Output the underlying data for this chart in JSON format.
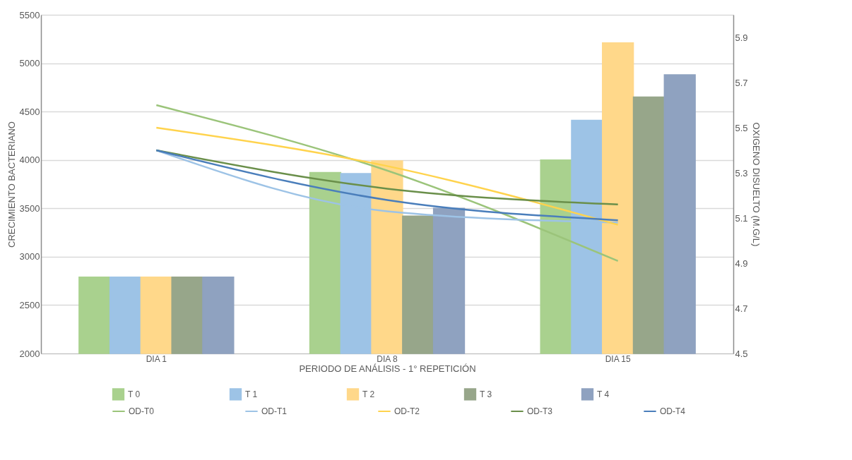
{
  "chart_data": {
    "type": "bar",
    "xlabel": "PERIODO DE ANÁLISIS - 1° REPETICIÓN",
    "ylabel": "CRECIMIENTO BACTERIANO",
    "y2label": "OXIGENO DISUELTO (M.G/L)",
    "categories": [
      "DIA 1",
      "DIA 8",
      "DIA 15"
    ],
    "series": [
      {
        "name": "T 0",
        "color": "#a9d18e",
        "values": [
          2790,
          3870,
          4000
        ]
      },
      {
        "name": "T 1",
        "color": "#9dc3e6",
        "values": [
          2790,
          3860,
          4410
        ]
      },
      {
        "name": "T 2",
        "color": "#ffd88a",
        "values": [
          2790,
          3990,
          5210
        ]
      },
      {
        "name": "T 3",
        "color": "#97a68a",
        "values": [
          2790,
          3420,
          4650
        ]
      },
      {
        "name": "T 4",
        "color": "#8fa2c0",
        "values": [
          2790,
          3500,
          4880
        ]
      },
      {
        "name": "OD-T0",
        "type": "line",
        "axis": "y2",
        "color": "#9bc47a",
        "values": [
          5.6,
          5.31,
          4.91
        ]
      },
      {
        "name": "OD-T1",
        "type": "line",
        "axis": "y2",
        "color": "#9dc3e6",
        "values": [
          5.4,
          5.13,
          5.08
        ]
      },
      {
        "name": "OD-T2",
        "type": "line",
        "axis": "y2",
        "color": "#ffd34d",
        "values": [
          5.5,
          5.33,
          5.07
        ]
      },
      {
        "name": "OD-T3",
        "type": "line",
        "axis": "y2",
        "color": "#6a8f4a",
        "values": [
          5.4,
          5.23,
          5.16
        ]
      },
      {
        "name": "OD-T4",
        "type": "line",
        "axis": "y2",
        "color": "#4a7ebb",
        "values": [
          5.4,
          5.18,
          5.09
        ]
      }
    ],
    "ylim": [
      2000,
      5500
    ],
    "yticks": [
      2000,
      2500,
      3000,
      3500,
      4000,
      4500,
      5000,
      5500
    ],
    "y2lim": [
      4.5,
      6.0
    ],
    "y2ticks": [
      4.5,
      4.7,
      4.9,
      5.1,
      5.3,
      5.5,
      5.7,
      5.9
    ],
    "grid": "y",
    "legend": "bottom"
  }
}
